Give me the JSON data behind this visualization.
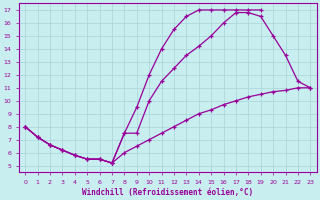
{
  "xlabel": "Windchill (Refroidissement éolien,°C)",
  "background_color": "#c8eef0",
  "line_color": "#990099",
  "grid_color": "#a8d4d8",
  "xlim": [
    -0.5,
    23.5
  ],
  "ylim": [
    4.5,
    17.5
  ],
  "xticks": [
    0,
    1,
    2,
    3,
    4,
    5,
    6,
    7,
    8,
    9,
    10,
    11,
    12,
    13,
    14,
    15,
    16,
    17,
    18,
    19,
    20,
    21,
    22,
    23
  ],
  "yticks": [
    5,
    6,
    7,
    8,
    9,
    10,
    11,
    12,
    13,
    14,
    15,
    16,
    17
  ],
  "line1_x": [
    0,
    1,
    2,
    3,
    4,
    5,
    6,
    7,
    8,
    9,
    10,
    11,
    12,
    13,
    14,
    15,
    16,
    17,
    18,
    19,
    20,
    21,
    22,
    23
  ],
  "line1_y": [
    8.0,
    7.2,
    6.6,
    6.2,
    5.8,
    5.5,
    5.5,
    5.2,
    6.0,
    6.5,
    7.0,
    7.5,
    8.0,
    8.5,
    9.0,
    9.3,
    9.7,
    10.0,
    10.3,
    10.5,
    10.7,
    10.8,
    11.0,
    11.0
  ],
  "line2_x": [
    0,
    1,
    2,
    3,
    4,
    5,
    6,
    7,
    8,
    9,
    10,
    11,
    12,
    13,
    14,
    15,
    16,
    17,
    18,
    19
  ],
  "line2_y": [
    8.0,
    7.2,
    6.6,
    6.2,
    5.8,
    5.5,
    5.5,
    5.2,
    7.5,
    9.5,
    12.0,
    14.0,
    15.5,
    16.5,
    17.0,
    17.0,
    17.0,
    17.0,
    17.0,
    17.0
  ],
  "line3_x": [
    0,
    1,
    2,
    3,
    4,
    5,
    6,
    7,
    8,
    9,
    10,
    11,
    12,
    13,
    14,
    15,
    16,
    17,
    18,
    19,
    20,
    21,
    22,
    23
  ],
  "line3_y": [
    8.0,
    7.2,
    6.6,
    6.2,
    5.8,
    5.5,
    5.5,
    5.2,
    7.5,
    7.5,
    10.0,
    11.5,
    12.5,
    13.5,
    14.2,
    15.0,
    16.0,
    16.8,
    16.8,
    16.5,
    15.0,
    13.5,
    11.5,
    11.0
  ]
}
